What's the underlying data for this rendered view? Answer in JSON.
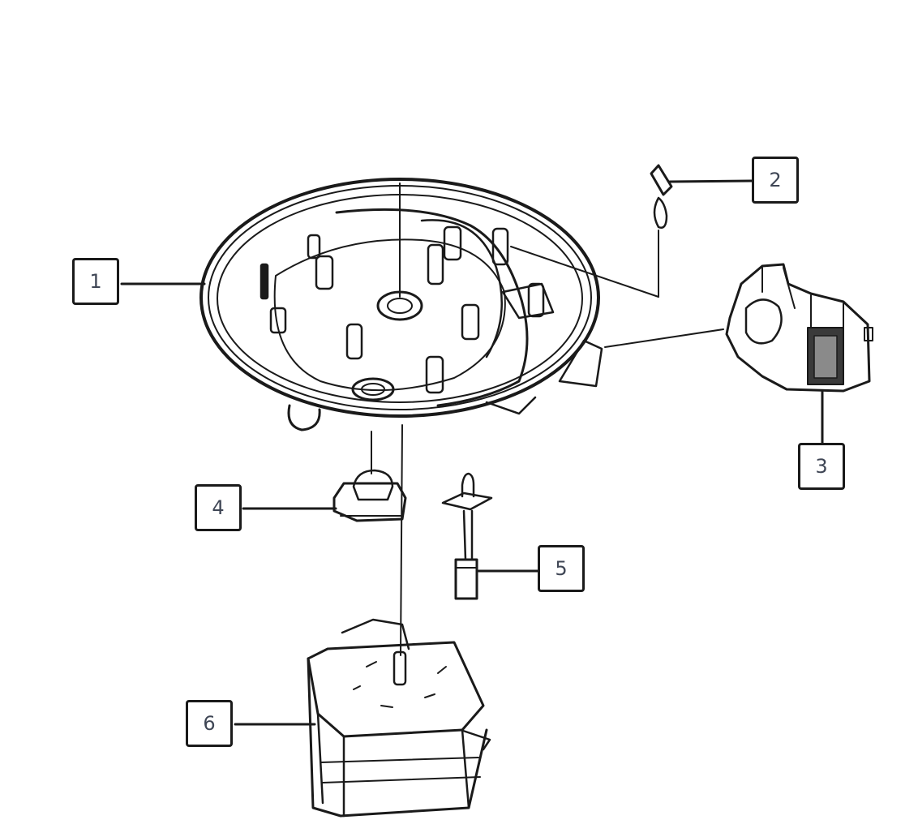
{
  "callouts": [
    {
      "id": "1",
      "label": "1"
    },
    {
      "id": "2",
      "label": "2"
    },
    {
      "id": "3",
      "label": "3"
    },
    {
      "id": "4",
      "label": "4"
    },
    {
      "id": "5",
      "label": "5"
    },
    {
      "id": "6",
      "label": "6"
    }
  ],
  "colors": {
    "line": "#1a1a1a",
    "label": "#3f4655",
    "background": "#ffffff"
  }
}
